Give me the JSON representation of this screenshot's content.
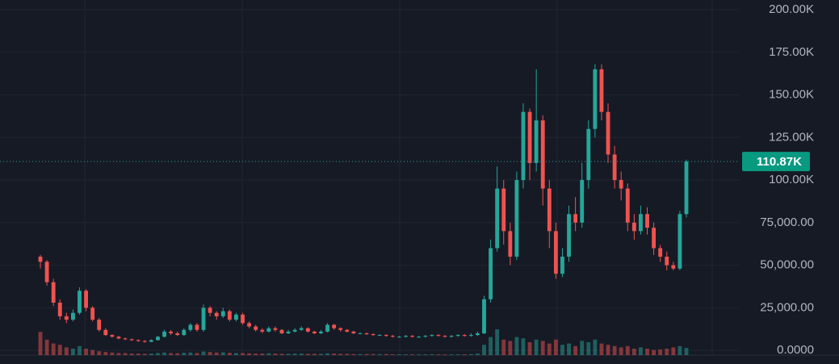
{
  "chart_data": {
    "type": "candlestick",
    "up_color": "#26a69a",
    "down_color": "#ef5350",
    "ylim": [
      -2800,
      205700
    ],
    "yticks": [
      {
        "value": 0,
        "label": "0.0000"
      },
      {
        "value": 25000,
        "label": "25,000.00"
      },
      {
        "value": 50000,
        "label": "50,000.00"
      },
      {
        "value": 75000,
        "label": "75,000.00"
      },
      {
        "value": 100000,
        "label": "100.00K"
      },
      {
        "value": 125000,
        "label": "125.00K"
      },
      {
        "value": 150000,
        "label": "150.00K"
      },
      {
        "value": 175000,
        "label": "175.00K"
      },
      {
        "value": 200000,
        "label": "200.00K"
      }
    ],
    "grid": true,
    "last_price": {
      "value": 110870,
      "label": "110.87K"
    },
    "open": [
      55000,
      52000,
      40000,
      28000,
      20000,
      18000,
      22000,
      35000,
      25000,
      18000,
      12000,
      9000,
      8000,
      7000,
      6500,
      6000,
      5500,
      5000,
      6000,
      8000,
      11000,
      10000,
      9000,
      12000,
      15000,
      12000,
      25000,
      22000,
      20000,
      23000,
      18000,
      21000,
      16000,
      14000,
      12000,
      11000,
      13000,
      12000,
      10000,
      11000,
      12000,
      13000,
      11000,
      10000,
      11000,
      15000,
      13000,
      12000,
      11000,
      10000,
      10000,
      9500,
      9000,
      9000,
      8500,
      8000,
      8000,
      8500,
      8000,
      8000,
      8500,
      9000,
      8500,
      8000,
      8500,
      9000,
      8500,
      9000,
      10000,
      30000,
      60000,
      95000,
      70000,
      55000,
      100000,
      140000,
      110000,
      135000,
      95000,
      70000,
      45000,
      55000,
      80000,
      75000,
      100000,
      130000,
      165000,
      140000,
      115000,
      100000,
      95000,
      75000,
      70000,
      80000,
      72000,
      60000,
      55000,
      50000,
      48000,
      80000
    ],
    "high": [
      56000,
      53000,
      42000,
      30000,
      22000,
      24000,
      37000,
      36000,
      26000,
      19000,
      13000,
      9500,
      8500,
      7500,
      7000,
      6500,
      6000,
      6500,
      8500,
      12000,
      12000,
      11000,
      13000,
      16000,
      16000,
      27000,
      26000,
      23000,
      25000,
      24000,
      22000,
      22000,
      17000,
      15000,
      13000,
      14000,
      14000,
      12500,
      12000,
      13000,
      14000,
      13500,
      11500,
      12000,
      16000,
      15500,
      13500,
      12500,
      11500,
      10500,
      10500,
      10000,
      9500,
      9500,
      9000,
      8500,
      9000,
      9000,
      8500,
      9000,
      9500,
      9500,
      9000,
      9000,
      9500,
      9500,
      10000,
      11000,
      32000,
      65000,
      108000,
      100000,
      75000,
      105000,
      145000,
      142000,
      165000,
      138000,
      100000,
      75000,
      60000,
      85000,
      90000,
      110000,
      135000,
      168000,
      168000,
      145000,
      120000,
      105000,
      98000,
      80000,
      85000,
      84000,
      75000,
      62000,
      58000,
      52000,
      82000,
      112000
    ],
    "low": [
      48000,
      38000,
      26000,
      18000,
      16000,
      17000,
      21000,
      23000,
      17000,
      11000,
      8500,
      7500,
      6500,
      6000,
      5500,
      5000,
      4500,
      4800,
      5800,
      7500,
      9000,
      8500,
      8500,
      11000,
      11000,
      11000,
      20000,
      18000,
      19000,
      17000,
      17000,
      15000,
      13000,
      11000,
      10000,
      10500,
      11000,
      9500,
      9500,
      10500,
      11500,
      10500,
      9500,
      9500,
      10500,
      12000,
      11000,
      10500,
      9500,
      9500,
      9000,
      8500,
      8500,
      8000,
      7500,
      7500,
      7500,
      7500,
      7500,
      7500,
      8000,
      8000,
      7500,
      7500,
      8000,
      8000,
      8000,
      8500,
      9500,
      28000,
      58000,
      62000,
      50000,
      53000,
      95000,
      100000,
      105000,
      85000,
      60000,
      42000,
      43000,
      52000,
      70000,
      72000,
      95000,
      125000,
      135000,
      110000,
      95000,
      88000,
      70000,
      65000,
      68000,
      68000,
      56000,
      52000,
      47000,
      47000,
      47000,
      78000
    ],
    "close": [
      52000,
      40000,
      28000,
      20000,
      18000,
      22000,
      35000,
      25000,
      18000,
      12000,
      9000,
      8000,
      7000,
      6500,
      6000,
      5500,
      5000,
      6000,
      8000,
      11000,
      10000,
      9000,
      12000,
      15000,
      12000,
      25000,
      22000,
      20000,
      23000,
      18000,
      21000,
      16000,
      14000,
      12000,
      11000,
      13000,
      12000,
      10000,
      11000,
      12000,
      13000,
      11000,
      10000,
      11000,
      15000,
      13000,
      12000,
      11000,
      10000,
      10000,
      9500,
      9000,
      9000,
      8500,
      8000,
      8000,
      8500,
      8000,
      8000,
      8500,
      9000,
      8500,
      8000,
      8500,
      9000,
      8500,
      9000,
      10000,
      30000,
      60000,
      95000,
      70000,
      55000,
      100000,
      140000,
      110000,
      135000,
      95000,
      70000,
      45000,
      55000,
      80000,
      75000,
      100000,
      130000,
      165000,
      140000,
      115000,
      100000,
      95000,
      75000,
      70000,
      80000,
      72000,
      60000,
      55000,
      50000,
      48000,
      80000,
      110870
    ],
    "volume_ylim": [
      0,
      100
    ],
    "volume": [
      90,
      60,
      45,
      40,
      30,
      25,
      35,
      25,
      20,
      15,
      12,
      10,
      8,
      8,
      6,
      6,
      5,
      6,
      8,
      10,
      8,
      7,
      9,
      10,
      8,
      14,
      12,
      10,
      11,
      9,
      8,
      8,
      7,
      6,
      6,
      7,
      6,
      5,
      5,
      6,
      6,
      5,
      5,
      5,
      7,
      6,
      5,
      5,
      4,
      4,
      4,
      4,
      4,
      4,
      3,
      3,
      3,
      3,
      3,
      3,
      3,
      3,
      3,
      3,
      3,
      3,
      4,
      6,
      40,
      70,
      100,
      60,
      55,
      70,
      65,
      50,
      60,
      55,
      45,
      60,
      40,
      45,
      35,
      55,
      50,
      60,
      45,
      40,
      35,
      30,
      35,
      25,
      30,
      25,
      20,
      22,
      25,
      30,
      35,
      28
    ]
  }
}
